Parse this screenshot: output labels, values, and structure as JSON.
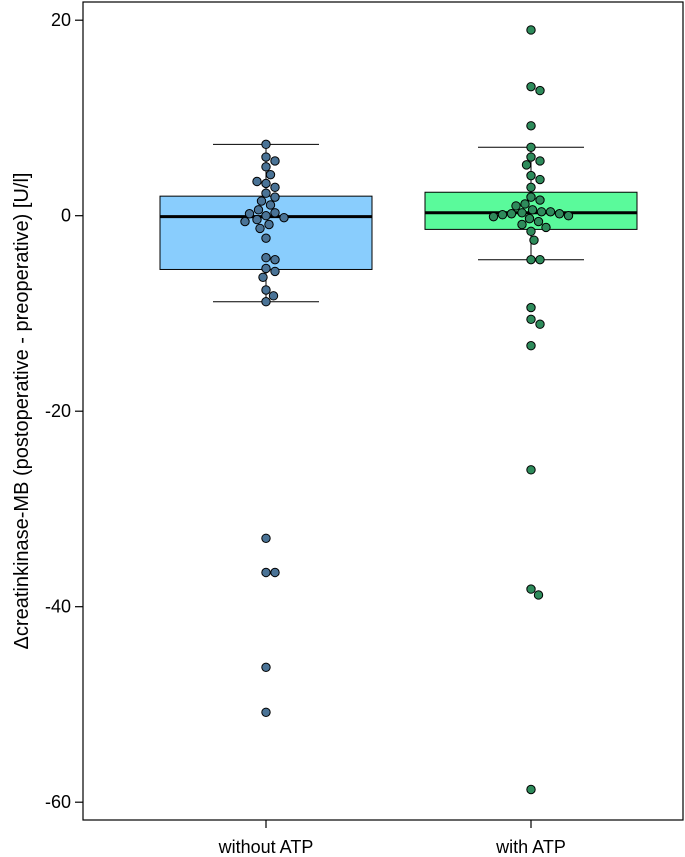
{
  "chart_data": {
    "type": "box",
    "title": "",
    "xlabel": "",
    "ylabel": "Δcreatinkinase-MB (postoperative - preoperative) [U/l]",
    "ylim": [
      -61.5,
      22
    ],
    "yticks": [
      20,
      0,
      -20,
      -40,
      -60
    ],
    "grid": false,
    "categories": [
      "without ATP",
      "with ATP"
    ],
    "series": [
      {
        "box": {
          "q1": -5.5,
          "median": -0.1,
          "q3": 2.0,
          "whisker_low": -8.8,
          "whisker_high": 7.3
        },
        "color": "#89cdfd",
        "point_color": "#4a7396",
        "points": [
          7.3,
          6.0,
          5.6,
          5.0,
          4.2,
          3.3,
          3.5,
          2.9,
          2.3,
          1.9,
          1.5,
          1.1,
          0.6,
          0.3,
          0.2,
          0.0,
          -0.2,
          -0.4,
          -0.6,
          -0.9,
          -1.3,
          -2.3,
          -4.3,
          -4.5,
          -5.4,
          -5.7,
          -6.3,
          -7.6,
          -8.2,
          -8.8,
          -33.0,
          -36.5,
          -36.5,
          -46.2,
          -50.8
        ]
      },
      {
        "box": {
          "q1": -1.4,
          "median": 0.3,
          "q3": 2.4,
          "whisker_low": -4.5,
          "whisker_high": 7.0
        },
        "color": "#5afa9b",
        "point_color": "#2e8b5b",
        "points": [
          19.0,
          13.2,
          12.8,
          9.2,
          7.0,
          6.0,
          5.6,
          5.2,
          4.1,
          3.7,
          2.9,
          1.9,
          1.6,
          1.2,
          1.0,
          0.6,
          0.4,
          0.4,
          0.3,
          0.2,
          0.2,
          0.1,
          0.0,
          -0.1,
          -0.3,
          -0.6,
          -0.9,
          -1.2,
          -1.6,
          -2.5,
          -4.5,
          -4.5,
          -9.4,
          -10.6,
          -11.1,
          -13.3,
          -26.0,
          -38.2,
          -38.8,
          -58.7
        ]
      }
    ]
  }
}
